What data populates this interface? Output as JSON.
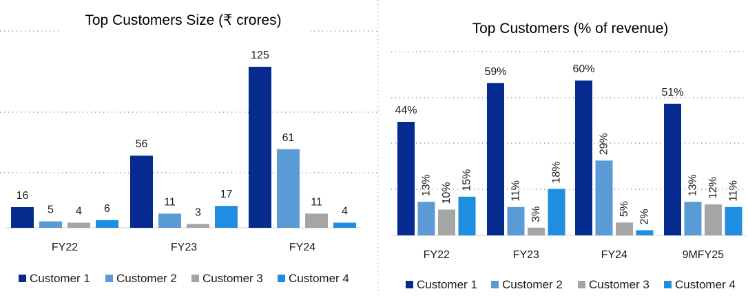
{
  "colors": {
    "customer1": "#062b8f",
    "customer2": "#5b9bd5",
    "customer3": "#a5a5a5",
    "customer4": "#1f8ee0",
    "axis": "#d0d0d0",
    "grid_dots": "#7f7f7f",
    "text": "#1a1a1a"
  },
  "chart_data": [
    {
      "type": "bar",
      "title": "Top Customers Size (₹ crores)",
      "categories": [
        "FY22",
        "FY23",
        "FY24"
      ],
      "series": [
        {
          "name": "Customer 1",
          "values": [
            16,
            56,
            125
          ],
          "labels": [
            "16",
            "56",
            "125"
          ]
        },
        {
          "name": "Customer 2",
          "values": [
            5,
            11,
            61
          ],
          "labels": [
            "5",
            "11",
            "61"
          ]
        },
        {
          "name": "Customer 3",
          "values": [
            4,
            3,
            11
          ],
          "labels": [
            "4",
            "3",
            "11"
          ]
        },
        {
          "name": "Customer 4",
          "values": [
            6,
            17,
            4
          ],
          "labels": [
            "6",
            "17",
            "4"
          ]
        }
      ],
      "ylim": [
        0,
        125
      ],
      "xlabel": "",
      "ylabel": "",
      "legend": "bottom"
    },
    {
      "type": "bar",
      "title": "Top Customers (% of revenue)",
      "categories": [
        "FY22",
        "FY23",
        "FY24",
        "9MFY25"
      ],
      "series": [
        {
          "name": "Customer 1",
          "values": [
            44,
            59,
            60,
            51
          ],
          "labels": [
            "44%",
            "59%",
            "60%",
            "51%"
          ]
        },
        {
          "name": "Customer 2",
          "values": [
            13,
            11,
            29,
            13
          ],
          "labels": [
            "13%",
            "11%",
            "29%",
            "13%"
          ]
        },
        {
          "name": "Customer 3",
          "values": [
            10,
            3,
            5,
            12
          ],
          "labels": [
            "10%",
            "3%",
            "5%",
            "12%"
          ]
        },
        {
          "name": "Customer 4",
          "values": [
            15,
            18,
            2,
            11
          ],
          "labels": [
            "15%",
            "18%",
            "2%",
            "11%"
          ]
        }
      ],
      "ylim": [
        0,
        60
      ],
      "xlabel": "",
      "ylabel": "",
      "legend": "bottom"
    }
  ]
}
